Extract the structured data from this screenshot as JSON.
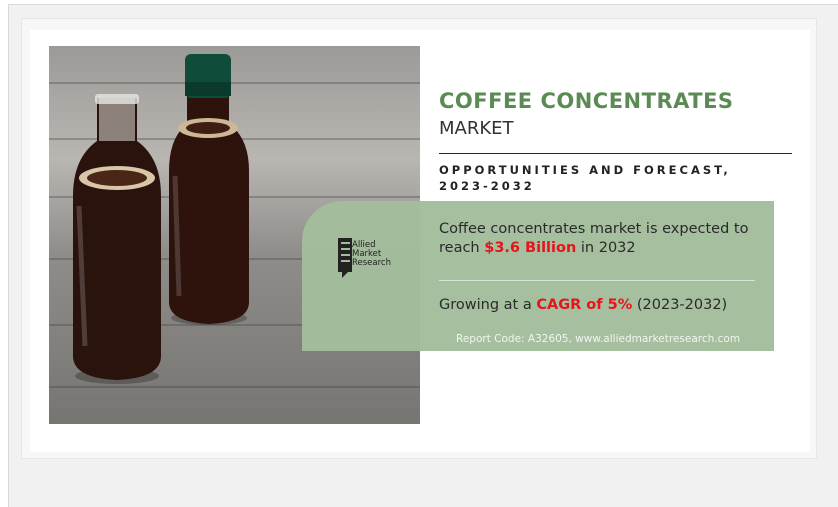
{
  "headline": {
    "title": "COFFEE CONCENTRATES",
    "subtitle": "MARKET"
  },
  "forecast": "OPPORTUNITIES AND FORECAST, 2023-2032",
  "logo": {
    "line1": "Allied",
    "line2": "Market",
    "line3": "Research"
  },
  "statement1": {
    "prefix": "Coffee concentrates market is expected to reach ",
    "highlight": "$3.6 Billion",
    "suffix": " in 2032"
  },
  "statement2": {
    "prefix": "Growing at a ",
    "highlight": "CAGR of 5%",
    "suffix": " (2023-2032)"
  },
  "report_code": "Report Code: A32605, www.alliedmarketresearch.com",
  "colors": {
    "accent_green": "#5b8a55",
    "panel_green": "#a2bd9c",
    "highlight_red": "#e8141c"
  }
}
